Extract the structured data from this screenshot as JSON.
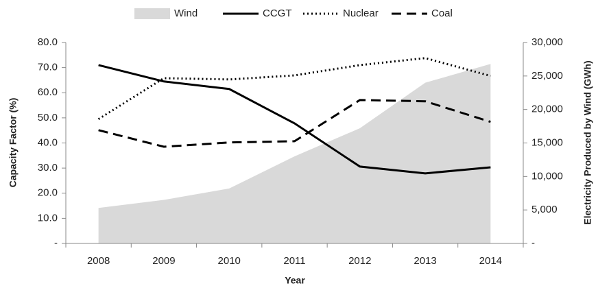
{
  "chart_data": {
    "type": "line",
    "x_label": "Year",
    "y_label": "Capacity Factor (%)",
    "y2_label": "Electricity Produced by Wind (GWh)",
    "categories": [
      "2008",
      "2009",
      "2010",
      "2011",
      "2012",
      "2013",
      "2014"
    ],
    "series": [
      {
        "name": "Wind",
        "type": "area",
        "color": "#d9d9d9",
        "axis": "y2",
        "values": [
          5300,
          6500,
          8200,
          13000,
          17200,
          24000,
          26800
        ]
      },
      {
        "name": "CCGT",
        "type": "line",
        "style": "solid",
        "color": "#000000",
        "values": [
          71.0,
          64.5,
          61.5,
          47.8,
          30.6,
          27.9,
          30.3
        ]
      },
      {
        "name": "Nuclear",
        "type": "line",
        "style": "dotted",
        "color": "#000000",
        "values": [
          49.5,
          65.8,
          65.3,
          66.9,
          71.0,
          73.8,
          66.7
        ]
      },
      {
        "name": "Coal",
        "type": "line",
        "style": "dashed",
        "color": "#000000",
        "values": [
          45.1,
          38.5,
          40.2,
          40.7,
          57.1,
          56.6,
          48.4
        ]
      }
    ],
    "ylim": [
      0,
      80
    ],
    "yticks": [
      {
        "value": 0,
        "label": "-"
      },
      {
        "value": 10,
        "label": "10.0"
      },
      {
        "value": 20,
        "label": "20.0"
      },
      {
        "value": 30,
        "label": "30.0"
      },
      {
        "value": 40,
        "label": "40.0"
      },
      {
        "value": 50,
        "label": "50.0"
      },
      {
        "value": 60,
        "label": "60.0"
      },
      {
        "value": 70,
        "label": "70.0"
      },
      {
        "value": 80,
        "label": "80.0"
      }
    ],
    "y2lim": [
      0,
      30000
    ],
    "y2ticks": [
      {
        "value": 0,
        "label": "-"
      },
      {
        "value": 5000,
        "label": "5,000"
      },
      {
        "value": 10000,
        "label": "10,000"
      },
      {
        "value": 15000,
        "label": "15,000"
      },
      {
        "value": 20000,
        "label": "20,000"
      },
      {
        "value": 25000,
        "label": "25,000"
      },
      {
        "value": 30000,
        "label": "30,000"
      }
    ],
    "legend": "top",
    "grid": false
  }
}
